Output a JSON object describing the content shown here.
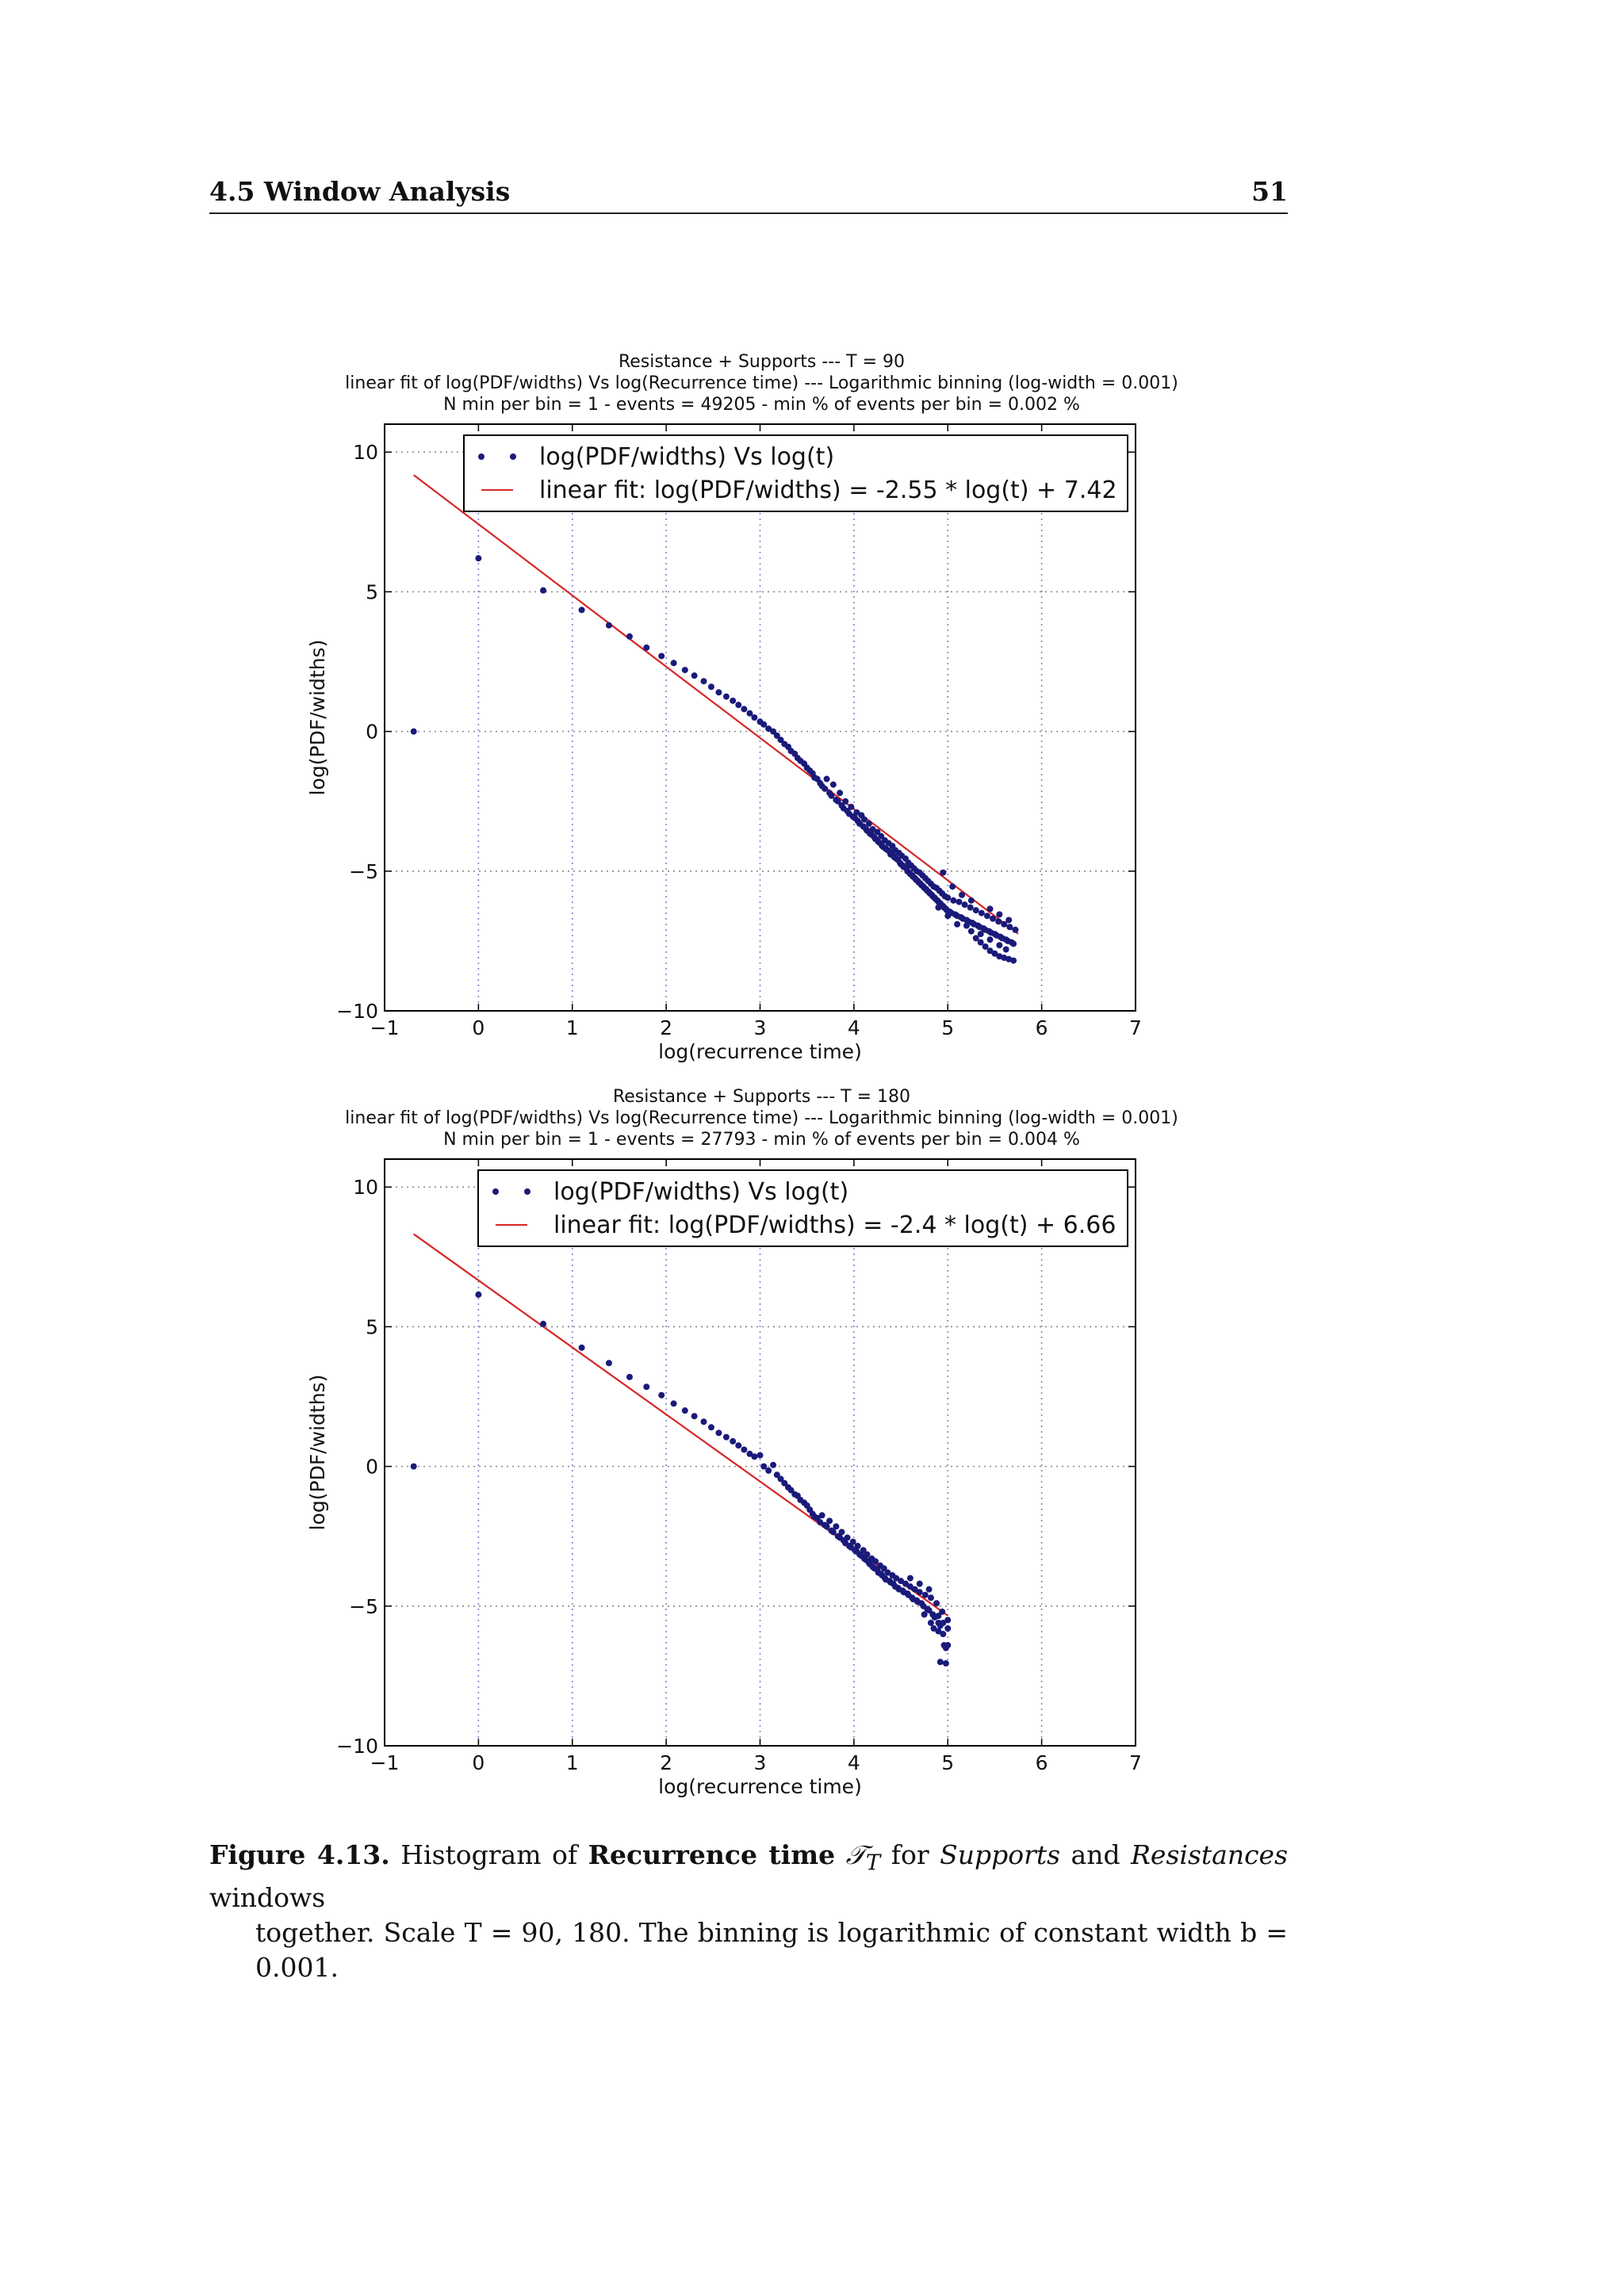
{
  "header": {
    "section_title": "4.5 Window Analysis",
    "page_number": "51"
  },
  "charts_common": {
    "xlabel": "log(recurrence time)",
    "ylabel": "log(PDF/widths)",
    "xlim": [
      -1,
      7
    ],
    "ylim": [
      -10,
      11
    ],
    "x_ticks": [
      -1,
      0,
      1,
      2,
      3,
      4,
      5,
      6,
      7
    ],
    "y_ticks": [
      -10,
      -5,
      0,
      5,
      10
    ],
    "grid": true,
    "legend_position": "top-right",
    "colors": {
      "points": "#1a1a7a",
      "fit": "#d62728",
      "grid": "#8a7fd0"
    }
  },
  "chart_data": [
    {
      "type": "scatter",
      "title": [
        "Resistance + Supports --- T = 90",
        "linear fit of log(PDF/widths) Vs log(Recurrence time) --- Logarithmic binning (log-width = 0.001)",
        "N min per bin = 1 - events = 49205 - min % of events per bin = 0.002 %"
      ],
      "xlabel": "log(recurrence time)",
      "ylabel": "log(PDF/widths)",
      "xlim": [
        -1,
        7
      ],
      "ylim": [
        -10,
        11
      ],
      "legend": [
        "log(PDF/widths) Vs log(t)",
        "linear fit: log(PDF/widths) = -2.55 * log(t) + 7.42"
      ],
      "fit": {
        "slope": -2.55,
        "intercept": 7.42,
        "x_range": [
          -0.69,
          5.75
        ]
      },
      "points": [
        [
          -0.69,
          0
        ],
        [
          0,
          6.2
        ],
        [
          0.69,
          5.05
        ],
        [
          1.1,
          4.35
        ],
        [
          1.39,
          3.8
        ],
        [
          1.61,
          3.4
        ],
        [
          1.79,
          3.0
        ],
        [
          1.95,
          2.7
        ],
        [
          2.08,
          2.45
        ],
        [
          2.2,
          2.2
        ],
        [
          2.3,
          2.0
        ],
        [
          2.4,
          1.8
        ],
        [
          2.48,
          1.6
        ],
        [
          2.56,
          1.4
        ],
        [
          2.64,
          1.25
        ],
        [
          2.71,
          1.1
        ],
        [
          2.77,
          0.95
        ],
        [
          2.83,
          0.8
        ],
        [
          2.89,
          0.65
        ],
        [
          2.94,
          0.5
        ],
        [
          3.0,
          0.35
        ],
        [
          3.04,
          0.25
        ],
        [
          3.09,
          0.1
        ],
        [
          3.14,
          0.0
        ],
        [
          3.18,
          -0.15
        ],
        [
          3.22,
          -0.3
        ],
        [
          3.26,
          -0.45
        ],
        [
          3.3,
          -0.55
        ],
        [
          3.33,
          -0.7
        ],
        [
          3.37,
          -0.8
        ],
        [
          3.4,
          -0.95
        ],
        [
          3.43,
          -1.05
        ],
        [
          3.47,
          -1.15
        ],
        [
          3.5,
          -1.3
        ],
        [
          3.53,
          -1.4
        ],
        [
          3.56,
          -1.5
        ],
        [
          3.58,
          -1.65
        ],
        [
          3.61,
          -1.7
        ],
        [
          3.64,
          -1.85
        ],
        [
          3.66,
          -1.95
        ],
        [
          3.69,
          -2.05
        ],
        [
          3.71,
          -1.7
        ],
        [
          3.74,
          -2.2
        ],
        [
          3.76,
          -2.3
        ],
        [
          3.78,
          -1.9
        ],
        [
          3.81,
          -2.45
        ],
        [
          3.83,
          -2.5
        ],
        [
          3.85,
          -2.2
        ],
        [
          3.87,
          -2.65
        ],
        [
          3.89,
          -2.75
        ],
        [
          3.91,
          -2.5
        ],
        [
          3.93,
          -2.85
        ],
        [
          3.95,
          -2.95
        ],
        [
          3.97,
          -2.7
        ],
        [
          3.99,
          -3.05
        ],
        [
          4.01,
          -3.1
        ],
        [
          4.03,
          -2.9
        ],
        [
          4.04,
          -3.2
        ],
        [
          4.06,
          -3.3
        ],
        [
          4.08,
          -3.0
        ],
        [
          4.1,
          -3.4
        ],
        [
          4.11,
          -3.15
        ],
        [
          4.13,
          -3.5
        ],
        [
          4.14,
          -3.55
        ],
        [
          4.16,
          -3.3
        ],
        [
          4.17,
          -3.65
        ],
        [
          4.19,
          -3.7
        ],
        [
          4.2,
          -3.5
        ],
        [
          4.22,
          -3.8
        ],
        [
          4.23,
          -3.85
        ],
        [
          4.25,
          -3.6
        ],
        [
          4.26,
          -3.95
        ],
        [
          4.28,
          -4.0
        ],
        [
          4.29,
          -3.75
        ],
        [
          4.3,
          -4.1
        ],
        [
          4.32,
          -4.15
        ],
        [
          4.33,
          -3.9
        ],
        [
          4.34,
          -4.2
        ],
        [
          4.36,
          -4.25
        ],
        [
          4.37,
          -4.0
        ],
        [
          4.38,
          -4.3
        ],
        [
          4.39,
          -4.4
        ],
        [
          4.41,
          -4.1
        ],
        [
          4.42,
          -4.45
        ],
        [
          4.43,
          -4.5
        ],
        [
          4.44,
          -4.25
        ],
        [
          4.45,
          -4.55
        ],
        [
          4.47,
          -4.6
        ],
        [
          4.48,
          -4.35
        ],
        [
          4.49,
          -4.7
        ],
        [
          4.5,
          -4.75
        ],
        [
          4.51,
          -4.45
        ],
        [
          4.52,
          -4.8
        ],
        [
          4.53,
          -4.85
        ],
        [
          4.55,
          -4.55
        ],
        [
          4.56,
          -4.9
        ],
        [
          4.57,
          -5.0
        ],
        [
          4.58,
          -4.7
        ],
        [
          4.59,
          -5.05
        ],
        [
          4.6,
          -5.1
        ],
        [
          4.61,
          -4.8
        ],
        [
          4.62,
          -5.15
        ],
        [
          4.63,
          -5.2
        ],
        [
          4.64,
          -4.9
        ],
        [
          4.65,
          -5.25
        ],
        [
          4.66,
          -5.3
        ],
        [
          4.67,
          -5.0
        ],
        [
          4.68,
          -5.35
        ],
        [
          4.69,
          -5.4
        ],
        [
          4.7,
          -5.05
        ],
        [
          4.71,
          -5.45
        ],
        [
          4.72,
          -5.5
        ],
        [
          4.73,
          -5.15
        ],
        [
          4.74,
          -5.55
        ],
        [
          4.75,
          -5.6
        ],
        [
          4.76,
          -5.25
        ],
        [
          4.77,
          -5.65
        ],
        [
          4.78,
          -5.7
        ],
        [
          4.79,
          -5.35
        ],
        [
          4.8,
          -5.75
        ],
        [
          4.81,
          -5.8
        ],
        [
          4.82,
          -5.45
        ],
        [
          4.83,
          -5.85
        ],
        [
          4.84,
          -5.9
        ],
        [
          4.85,
          -5.55
        ],
        [
          4.86,
          -5.95
        ],
        [
          4.87,
          -6.0
        ],
        [
          4.88,
          -5.6
        ],
        [
          4.89,
          -6.05
        ],
        [
          4.9,
          -6.1
        ],
        [
          4.91,
          -5.7
        ],
        [
          4.92,
          -6.15
        ],
        [
          4.93,
          -6.2
        ],
        [
          4.94,
          -5.8
        ],
        [
          4.95,
          -6.25
        ],
        [
          4.96,
          -6.3
        ],
        [
          4.97,
          -5.9
        ],
        [
          4.98,
          -6.35
        ],
        [
          4.99,
          -6.4
        ],
        [
          5.0,
          -5.95
        ],
        [
          5.02,
          -6.45
        ],
        [
          5.04,
          -6.5
        ],
        [
          5.06,
          -6.05
        ],
        [
          5.08,
          -6.55
        ],
        [
          5.1,
          -6.6
        ],
        [
          5.12,
          -6.1
        ],
        [
          5.14,
          -6.65
        ],
        [
          5.16,
          -6.7
        ],
        [
          5.18,
          -6.2
        ],
        [
          5.2,
          -6.75
        ],
        [
          5.22,
          -6.8
        ],
        [
          5.24,
          -6.3
        ],
        [
          5.26,
          -6.85
        ],
        [
          5.28,
          -6.9
        ],
        [
          5.3,
          -6.4
        ],
        [
          5.32,
          -6.95
        ],
        [
          5.34,
          -7.0
        ],
        [
          5.36,
          -6.5
        ],
        [
          5.38,
          -7.05
        ],
        [
          5.4,
          -7.1
        ],
        [
          5.42,
          -6.6
        ],
        [
          5.44,
          -7.15
        ],
        [
          5.46,
          -7.2
        ],
        [
          5.48,
          -6.7
        ],
        [
          5.5,
          -7.25
        ],
        [
          5.52,
          -7.3
        ],
        [
          5.54,
          -6.8
        ],
        [
          5.56,
          -7.35
        ],
        [
          5.58,
          -7.4
        ],
        [
          5.6,
          -6.9
        ],
        [
          5.62,
          -7.45
        ],
        [
          5.64,
          -7.5
        ],
        [
          5.66,
          -7.0
        ],
        [
          5.68,
          -7.55
        ],
        [
          5.7,
          -7.6
        ],
        [
          5.72,
          -7.1
        ],
        [
          5.3,
          -7.4
        ],
        [
          5.35,
          -7.55
        ],
        [
          5.4,
          -7.7
        ],
        [
          5.45,
          -7.85
        ],
        [
          5.5,
          -7.95
        ],
        [
          5.55,
          -8.05
        ],
        [
          5.6,
          -8.1
        ],
        [
          5.65,
          -8.15
        ],
        [
          5.7,
          -8.2
        ],
        [
          5.2,
          -6.95
        ],
        [
          5.25,
          -7.15
        ],
        [
          5.1,
          -6.9
        ],
        [
          5.0,
          -6.6
        ],
        [
          4.9,
          -6.3
        ],
        [
          5.35,
          -7.25
        ],
        [
          5.45,
          -7.45
        ],
        [
          5.55,
          -7.65
        ],
        [
          5.62,
          -7.8
        ],
        [
          4.95,
          -5.05
        ],
        [
          5.05,
          -5.55
        ],
        [
          5.15,
          -5.85
        ],
        [
          5.25,
          -6.05
        ],
        [
          5.45,
          -6.35
        ],
        [
          5.55,
          -6.55
        ],
        [
          5.65,
          -6.75
        ]
      ]
    },
    {
      "type": "scatter",
      "title": [
        "Resistance + Supports --- T = 180",
        "linear fit of log(PDF/widths) Vs log(Recurrence time) --- Logarithmic binning (log-width = 0.001)",
        "N min per bin = 1 - events = 27793 - min % of events per bin = 0.004 %"
      ],
      "xlabel": "log(recurrence time)",
      "ylabel": "log(PDF/widths)",
      "xlim": [
        -1,
        7
      ],
      "ylim": [
        -10,
        11
      ],
      "legend": [
        "log(PDF/widths) Vs log(t)",
        "linear fit: log(PDF/widths) = -2.4 * log(t) + 6.66"
      ],
      "fit": {
        "slope": -2.4,
        "intercept": 6.66,
        "x_range": [
          -0.69,
          5.0
        ]
      },
      "points": [
        [
          -0.69,
          0
        ],
        [
          0,
          6.15
        ],
        [
          0.69,
          5.1
        ],
        [
          1.1,
          4.25
        ],
        [
          1.39,
          3.7
        ],
        [
          1.61,
          3.2
        ],
        [
          1.79,
          2.85
        ],
        [
          1.95,
          2.55
        ],
        [
          2.08,
          2.25
        ],
        [
          2.2,
          2.0
        ],
        [
          2.3,
          1.8
        ],
        [
          2.4,
          1.6
        ],
        [
          2.48,
          1.4
        ],
        [
          2.56,
          1.2
        ],
        [
          2.64,
          1.05
        ],
        [
          2.71,
          0.9
        ],
        [
          2.77,
          0.75
        ],
        [
          2.83,
          0.6
        ],
        [
          2.89,
          0.45
        ],
        [
          2.94,
          0.35
        ],
        [
          3.0,
          0.4
        ],
        [
          3.04,
          0.0
        ],
        [
          3.09,
          -0.15
        ],
        [
          3.14,
          0.05
        ],
        [
          3.18,
          -0.3
        ],
        [
          3.22,
          -0.45
        ],
        [
          3.26,
          -0.6
        ],
        [
          3.3,
          -0.75
        ],
        [
          3.33,
          -0.85
        ],
        [
          3.37,
          -1.0
        ],
        [
          3.4,
          -1.05
        ],
        [
          3.43,
          -1.2
        ],
        [
          3.47,
          -1.3
        ],
        [
          3.5,
          -1.4
        ],
        [
          3.53,
          -1.55
        ],
        [
          3.56,
          -1.7
        ],
        [
          3.58,
          -1.8
        ],
        [
          3.61,
          -1.85
        ],
        [
          3.64,
          -2.0
        ],
        [
          3.66,
          -1.75
        ],
        [
          3.69,
          -2.1
        ],
        [
          3.71,
          -2.15
        ],
        [
          3.74,
          -1.95
        ],
        [
          3.76,
          -2.3
        ],
        [
          3.78,
          -2.35
        ],
        [
          3.81,
          -2.15
        ],
        [
          3.83,
          -2.5
        ],
        [
          3.85,
          -2.55
        ],
        [
          3.87,
          -2.35
        ],
        [
          3.89,
          -2.65
        ],
        [
          3.91,
          -2.75
        ],
        [
          3.93,
          -2.55
        ],
        [
          3.95,
          -2.85
        ],
        [
          3.97,
          -2.9
        ],
        [
          3.99,
          -2.7
        ],
        [
          4.01,
          -3.0
        ],
        [
          4.03,
          -3.05
        ],
        [
          4.04,
          -2.85
        ],
        [
          4.06,
          -3.15
        ],
        [
          4.08,
          -3.2
        ],
        [
          4.1,
          -3.0
        ],
        [
          4.11,
          -3.3
        ],
        [
          4.13,
          -3.35
        ],
        [
          4.14,
          -3.15
        ],
        [
          4.16,
          -3.45
        ],
        [
          4.17,
          -3.5
        ],
        [
          4.19,
          -3.3
        ],
        [
          4.2,
          -3.6
        ],
        [
          4.22,
          -3.65
        ],
        [
          4.23,
          -3.4
        ],
        [
          4.25,
          -3.7
        ],
        [
          4.26,
          -3.8
        ],
        [
          4.28,
          -3.55
        ],
        [
          4.29,
          -3.85
        ],
        [
          4.3,
          -3.9
        ],
        [
          4.32,
          -3.65
        ],
        [
          4.33,
          -4.0
        ],
        [
          4.34,
          -4.05
        ],
        [
          4.36,
          -3.8
        ],
        [
          4.38,
          -4.1
        ],
        [
          4.39,
          -4.15
        ],
        [
          4.41,
          -3.9
        ],
        [
          4.42,
          -4.2
        ],
        [
          4.44,
          -4.3
        ],
        [
          4.45,
          -4.0
        ],
        [
          4.47,
          -4.35
        ],
        [
          4.48,
          -4.4
        ],
        [
          4.5,
          -4.1
        ],
        [
          4.52,
          -4.45
        ],
        [
          4.53,
          -4.5
        ],
        [
          4.55,
          -4.2
        ],
        [
          4.57,
          -4.55
        ],
        [
          4.58,
          -4.6
        ],
        [
          4.6,
          -4.3
        ],
        [
          4.62,
          -4.7
        ],
        [
          4.63,
          -4.75
        ],
        [
          4.65,
          -4.4
        ],
        [
          4.67,
          -4.8
        ],
        [
          4.68,
          -4.85
        ],
        [
          4.7,
          -4.5
        ],
        [
          4.72,
          -4.9
        ],
        [
          4.74,
          -5.0
        ],
        [
          4.76,
          -4.6
        ],
        [
          4.78,
          -5.1
        ],
        [
          4.8,
          -5.15
        ],
        [
          4.82,
          -4.7
        ],
        [
          4.84,
          -5.3
        ],
        [
          4.86,
          -5.4
        ],
        [
          4.88,
          -4.9
        ],
        [
          4.9,
          -5.6
        ],
        [
          4.92,
          -5.7
        ],
        [
          4.94,
          -5.2
        ],
        [
          4.96,
          -6.4
        ],
        [
          4.98,
          -6.5
        ],
        [
          5.0,
          -5.5
        ],
        [
          4.85,
          -5.8
        ],
        [
          4.9,
          -5.9
        ],
        [
          4.95,
          -6.0
        ],
        [
          5.0,
          -6.4
        ],
        [
          4.92,
          -7.0
        ],
        [
          4.98,
          -7.05
        ],
        [
          4.9,
          -5.35
        ],
        [
          4.95,
          -5.6
        ],
        [
          5.0,
          -5.8
        ],
        [
          4.6,
          -4.0
        ],
        [
          4.7,
          -4.2
        ],
        [
          4.8,
          -4.4
        ],
        [
          4.82,
          -5.6
        ],
        [
          4.75,
          -5.3
        ]
      ]
    }
  ],
  "caption": {
    "label": "Figure 4.13.",
    "bold_term": "Recurrence time",
    "symbol": "𝒯",
    "symbol_sub": "T",
    "t1": " for ",
    "italic1": "Supports",
    "t2": " and ",
    "italic2": "Resistances",
    "t3": " windows",
    "line2": "together. Scale T = 90, 180. The binning is logarithmic of constant width b = 0.001."
  }
}
